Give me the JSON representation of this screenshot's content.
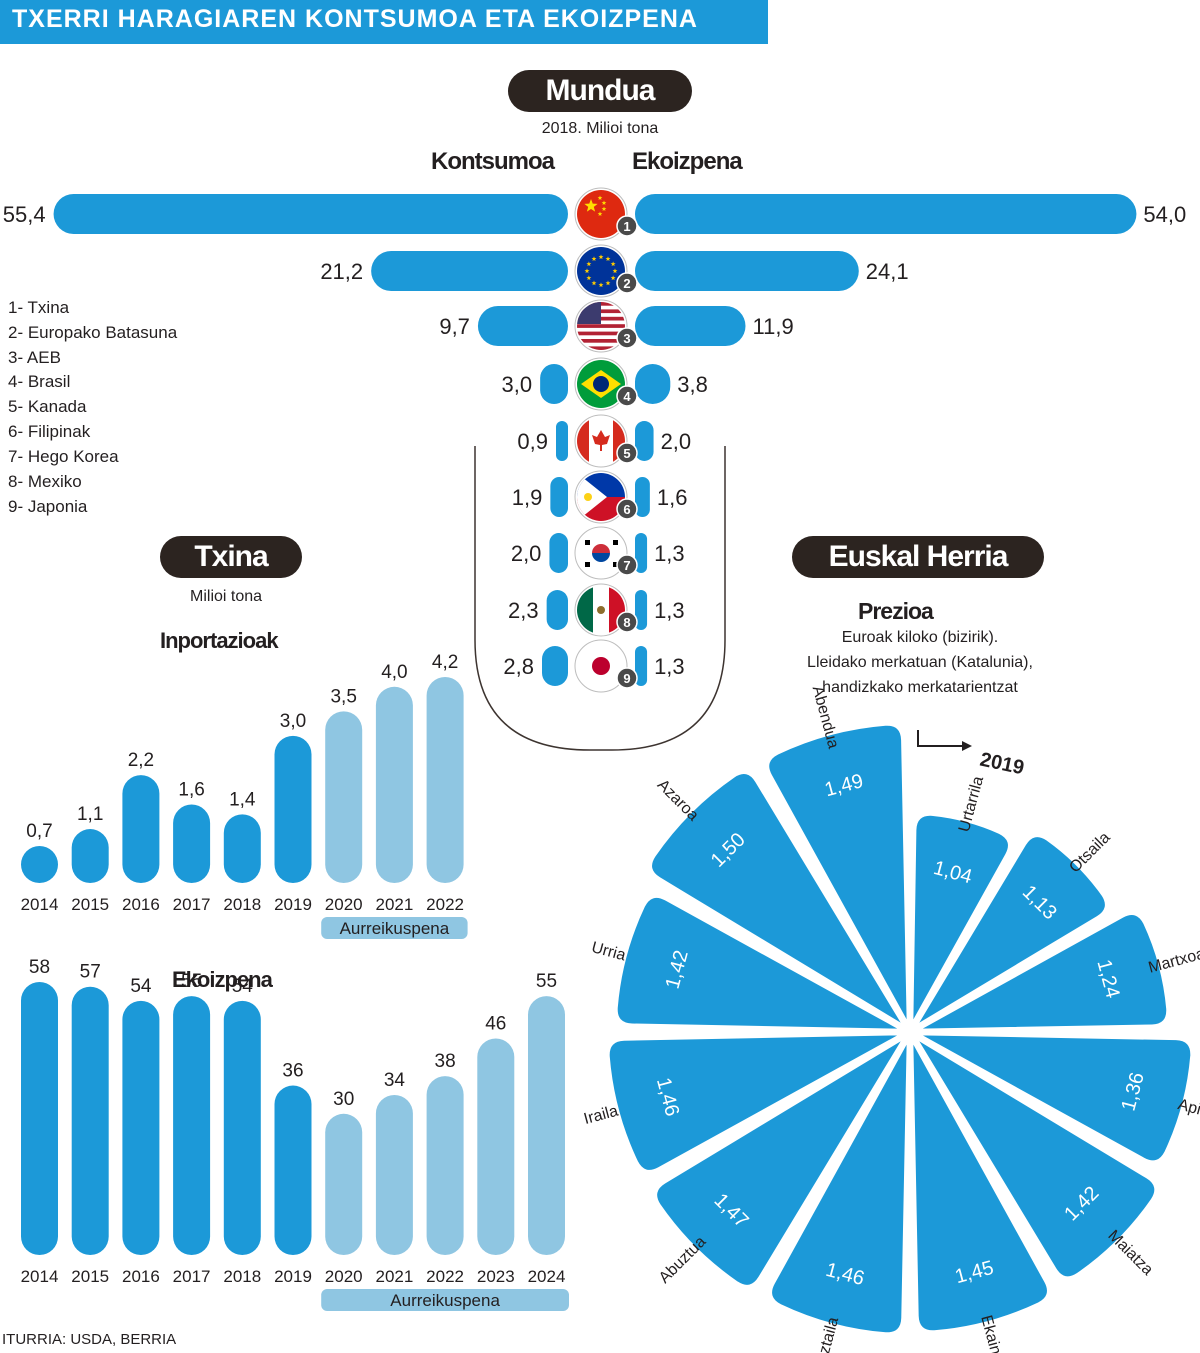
{
  "title": "TXERRI HARAGIAREN KONTSUMOA ETA EKOIZPENA",
  "source": "ITURRIA: USDA, BERRIA",
  "colors": {
    "accent": "#1c99d8",
    "forecast": "#8fc6e2",
    "pill": "#2c2420"
  },
  "mundua": {
    "heading": "Mundua",
    "subtitle": "2018. Milioi tona",
    "left_label": "Kontsumoa",
    "right_label": "Ekoizpena",
    "legend": [
      "1- Txina",
      "2- Europako Batasuna",
      "3- AEB",
      "4- Brasil",
      "5- Kanada",
      "6- Filipinak",
      "7- Hego Korea",
      "8- Mexiko",
      "9- Japonia"
    ]
  },
  "txina": {
    "heading": "Txina",
    "subtitle": "Milioi tona",
    "imports_title": "Inportazioak",
    "production_title": "Ekoizpena",
    "forecast_label": "Aurreikuspena"
  },
  "euskal_herria": {
    "heading": "Euskal Herria",
    "price_title": "Prezioa",
    "price_note_1": "Euroak kiloko (bizirik).",
    "price_note_2": "Lleidako merkatuan (Katalunia),",
    "price_note_3": "handizkako merkatarientzat",
    "year_label": "2019"
  },
  "chart_data": [
    {
      "type": "bar",
      "title": "Mundua",
      "categories": [
        "1",
        "2",
        "3",
        "4",
        "5",
        "6",
        "7",
        "8",
        "9"
      ],
      "series": [
        {
          "name": "Kontsumoa",
          "values": [
            55.4,
            21.2,
            9.7,
            3.0,
            0.9,
            1.9,
            2.0,
            2.3,
            2.8
          ],
          "labels": [
            "55,4",
            "21,2",
            "9,7",
            "3,0",
            "0,9",
            "1,9",
            "2,0",
            "2,3",
            "2,8"
          ]
        },
        {
          "name": "Ekoizpena",
          "values": [
            54.0,
            24.1,
            11.9,
            3.8,
            2.0,
            1.6,
            1.3,
            1.3,
            1.3
          ],
          "labels": [
            "54,0",
            "24,1",
            "11,9",
            "3,8",
            "2,0",
            "1,6",
            "1,3",
            "1,3",
            "1,3"
          ]
        }
      ]
    },
    {
      "type": "bar",
      "title": "Inportazioak",
      "categories": [
        "2014",
        "2015",
        "2016",
        "2017",
        "2018",
        "2019",
        "2020",
        "2021",
        "2022"
      ],
      "values": [
        0.7,
        1.1,
        2.2,
        1.6,
        1.4,
        3.0,
        3.5,
        4.0,
        4.2
      ],
      "labels": [
        "0,7",
        "1,1",
        "2,2",
        "1,6",
        "1,4",
        "3,0",
        "3,5",
        "4,0",
        "4,2"
      ],
      "forecast": [
        false,
        false,
        false,
        false,
        false,
        false,
        true,
        true,
        true
      ]
    },
    {
      "type": "bar",
      "title": "Ekoizpena",
      "categories": [
        "2014",
        "2015",
        "2016",
        "2017",
        "2018",
        "2019",
        "2020",
        "2021",
        "2022",
        "2023",
        "2024"
      ],
      "values": [
        58,
        57,
        54,
        55,
        54,
        36,
        30,
        34,
        38,
        46,
        55
      ],
      "labels": [
        "58",
        "57",
        "54",
        "55",
        "54",
        "36",
        "30",
        "34",
        "38",
        "46",
        "55"
      ],
      "forecast": [
        false,
        false,
        false,
        false,
        false,
        false,
        true,
        true,
        true,
        true,
        true
      ]
    },
    {
      "type": "pie",
      "title": "Prezioa",
      "categories": [
        "Urtarrila",
        "Otsaila",
        "Martxoa",
        "Apirila",
        "Maiatza",
        "Ekaina",
        "Uztaila",
        "Abuztua",
        "Iraila",
        "Urria",
        "Azaroa",
        "Abendua"
      ],
      "values": [
        1.04,
        1.13,
        1.24,
        1.36,
        1.42,
        1.45,
        1.46,
        1.47,
        1.46,
        1.42,
        1.5,
        1.49
      ],
      "labels": [
        "1,04",
        "1,13",
        "1,24",
        "1,36",
        "1,42",
        "1,45",
        "1,46",
        "1,47",
        "1,46",
        "1,42",
        "1,50",
        "1,49"
      ]
    }
  ]
}
